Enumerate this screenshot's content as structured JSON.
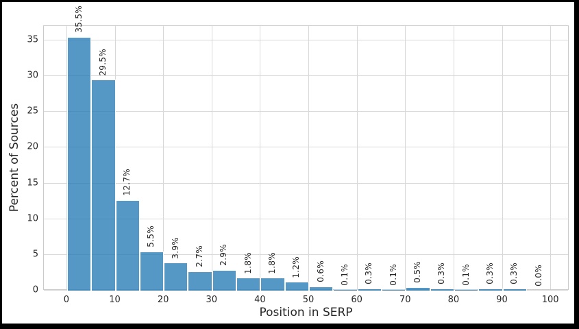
{
  "chart_data": {
    "type": "bar",
    "subtype": "histogram",
    "title": "",
    "xlabel": "Position in SERP",
    "ylabel": "Percent of Sources",
    "bin_edges": [
      0,
      5,
      10,
      15,
      20,
      25,
      30,
      35,
      40,
      45,
      50,
      55,
      60,
      65,
      70,
      75,
      80,
      85,
      90,
      95,
      100
    ],
    "values": [
      35.5,
      29.5,
      12.7,
      5.5,
      3.9,
      2.7,
      2.9,
      1.8,
      1.8,
      1.2,
      0.6,
      0.1,
      0.3,
      0.1,
      0.5,
      0.3,
      0.1,
      0.3,
      0.3,
      0.0
    ],
    "bar_labels": [
      "35.5%",
      "29.5%",
      "12.7%",
      "5.5%",
      "3.9%",
      "2.7%",
      "2.9%",
      "1.8%",
      "1.8%",
      "1.2%",
      "0.6%",
      "0.1%",
      "0.3%",
      "0.1%",
      "0.5%",
      "0.3%",
      "0.1%",
      "0.3%",
      "0.3%",
      "0.0%"
    ],
    "bar_label_rotation_deg": 90,
    "x_ticks": [
      0,
      10,
      20,
      30,
      40,
      50,
      60,
      70,
      80,
      90,
      100
    ],
    "y_ticks": [
      0,
      5,
      10,
      15,
      20,
      25,
      30,
      35
    ],
    "xlim": [
      -4.8,
      103.8
    ],
    "ylim": [
      0,
      37
    ],
    "grid": true,
    "legend": false,
    "colors": {
      "bar_fill": "#1F77B4",
      "bar_alpha": 0.76,
      "bar_edge": "#FFFFFF",
      "grid": "#D8D8D8",
      "spine": "#CACACA",
      "text": "#262626",
      "background": "#FFFFFF",
      "frame": "#000000"
    }
  }
}
